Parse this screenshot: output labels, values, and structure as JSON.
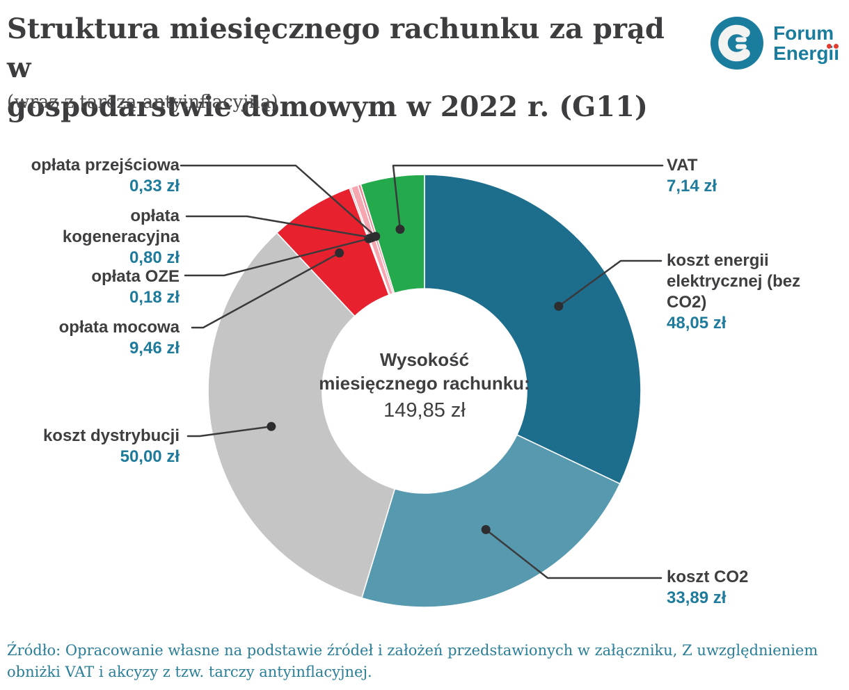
{
  "header": {
    "title_line1": "Struktura miesięcznego rachunku za prąd w",
    "title_line2": "gospodarstwie domowym w 2022 r. (G11)",
    "subtitle": "(wraz z tarczą antyinflacyjną)",
    "logo_line1": "Forum",
    "logo_line2": "Energii"
  },
  "chart_data": {
    "type": "pie",
    "subtype": "donut",
    "title": "Struktura miesięcznego rachunku za prąd w gospodarstwie domowym w 2022 r. (G11)",
    "unit": "zł",
    "total_value": 149.85,
    "center_line1": "Wysokość",
    "center_line2": "miesięcznego rachunku:",
    "center_value": "149,85 zł",
    "segments": [
      {
        "label": "koszt energii elektrycznej (bez CO2)",
        "value": 48.05,
        "value_label": "48,05 zł",
        "color": "#1d6d8c"
      },
      {
        "label": "koszt CO2",
        "value": 33.89,
        "value_label": "33,89 zł",
        "color": "#5799ae"
      },
      {
        "label": "koszt dystrybucji",
        "value": 50.0,
        "value_label": "50,00 zł",
        "color": "#c5c5c5"
      },
      {
        "label": "opłata mocowa",
        "value": 9.46,
        "value_label": "9,46 zł",
        "color": "#e8212f"
      },
      {
        "label": "opłata OZE",
        "value": 0.18,
        "value_label": "0,18 zł",
        "color": "#ee8894"
      },
      {
        "label": "opłata kogeneracyjna",
        "value": 0.8,
        "value_label": "0,80 zł",
        "color": "#f5a6b0"
      },
      {
        "label": "opłata przejściowa",
        "value": 0.33,
        "value_label": "0,33 zł",
        "color": "#ee8894"
      },
      {
        "label": "VAT",
        "value": 7.14,
        "value_label": "7,14 zł",
        "color": "#25a94d"
      }
    ]
  },
  "colors": {
    "value_accent": "#1f7b9b",
    "label_text": "#3e3e41",
    "leader_line": "#3a3a3c",
    "logo_teal": "#1b7d9e",
    "logo_red": "#e23b30",
    "source_text": "#2a7e97"
  },
  "source": {
    "line1": "Źródło: Opracowanie własne na podstawie źródeł i założeń przedstawionych w załączniku, Z uwzględnieniem",
    "line2": "obniżki VAT i akcyzy z tzw. tarczy antyinflacyjnej."
  }
}
